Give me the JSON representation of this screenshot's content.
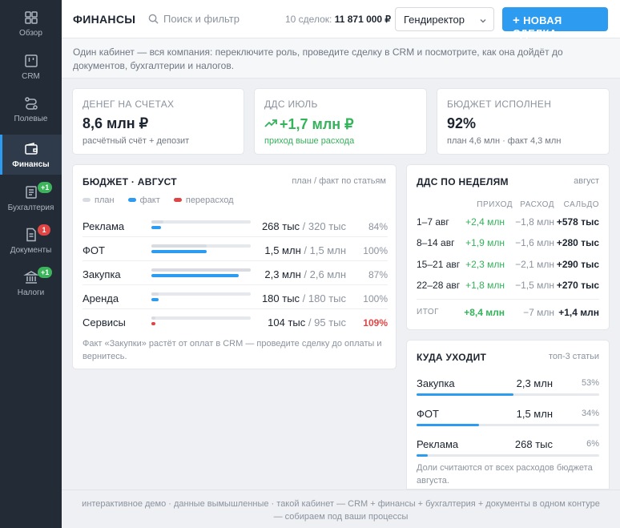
{
  "sidebar": {
    "items": [
      {
        "label": "Обзор",
        "icon": "grid-icon"
      },
      {
        "label": "CRM",
        "icon": "kanban-icon"
      },
      {
        "label": "Полевые",
        "icon": "route-icon"
      },
      {
        "label": "Финансы",
        "icon": "wallet-icon",
        "active": true
      },
      {
        "label": "Бухгалтерия",
        "icon": "ledger-icon",
        "badge": "+1"
      },
      {
        "label": "Документы",
        "icon": "document-icon",
        "badge": "1"
      },
      {
        "label": "Налоги",
        "icon": "bank-icon",
        "badge": "+1"
      }
    ]
  },
  "header": {
    "title": "ФИНАНСЫ",
    "search_placeholder": "Поиск и фильтр",
    "deals_label": "10 сделок:",
    "deals_total": "11 871 000 ₽",
    "role": "Гендиректор",
    "new_deal": "НОВАЯ СДЕЛКА"
  },
  "intro": "Один кабинет — вся компания: переключите роль, проведите сделку в CRM и посмотрите, как она дойдёт до документов, бухгалтерии и налогов.",
  "kpis": [
    {
      "label": "ДЕНЕГ НА СЧЕТАХ",
      "value": "8,6 млн ₽",
      "sub": "расчётный счёт + депозит"
    },
    {
      "label": "ДДС ИЮЛЬ",
      "value": "+1,7 млн ₽",
      "sub": "приход выше расхода"
    },
    {
      "label": "БЮДЖЕТ ИСПОЛНЕН",
      "value": "92%",
      "sub": "план 4,6 млн · факт 4,3 млн"
    }
  ],
  "budget": {
    "title": "БЮДЖЕТ · АВГУСТ",
    "note": "план / факт по статьям",
    "legend": {
      "plan": "план",
      "fact": "факт",
      "over": "перерасход"
    },
    "colors": {
      "plan": "#d8dce2",
      "fact": "#2d9cf0",
      "over": "#e04545"
    },
    "rows": [
      {
        "name": "Реклама",
        "fact": "268 тыс",
        "plan": "/ 320 тыс",
        "pct": "84%",
        "plan_fill": 0.12,
        "fact_fill": 0.1,
        "over": false
      },
      {
        "name": "ФОТ",
        "fact": "1,5 млн",
        "plan": "/ 1,5 млн",
        "pct": "100%",
        "plan_fill": 0.56,
        "fact_fill": 0.56,
        "over": false
      },
      {
        "name": "Закупка",
        "fact": "2,3 млн",
        "plan": "/ 2,6 млн",
        "pct": "87%",
        "plan_fill": 1.0,
        "fact_fill": 0.88,
        "over": false
      },
      {
        "name": "Аренда",
        "fact": "180 тыс",
        "plan": "/ 180 тыс",
        "pct": "100%",
        "plan_fill": 0.07,
        "fact_fill": 0.07,
        "over": false
      },
      {
        "name": "Сервисы",
        "fact": "104 тыс",
        "plan": "/ 95 тыс",
        "pct": "109%",
        "plan_fill": 0.04,
        "fact_fill": 0.04,
        "over": true
      }
    ],
    "footnote": "Факт «Закупки» растёт от оплат в CRM — проведите сделку до оплаты и вернитесь."
  },
  "dds": {
    "title": "ДДС ПО НЕДЕЛЯМ",
    "note": "август",
    "columns": {
      "income": "ПРИХОД",
      "expense": "РАСХОД",
      "balance": "САЛЬДО"
    },
    "rows": [
      {
        "week": "1–7 авг",
        "income": "+2,4 млн",
        "expense": "−1,8 млн",
        "balance": "+578 тыс"
      },
      {
        "week": "8–14 авг",
        "income": "+1,9 млн",
        "expense": "−1,6 млн",
        "balance": "+280 тыс"
      },
      {
        "week": "15–21 авг",
        "income": "+2,3 млн",
        "expense": "−2,1 млн",
        "balance": "+290 тыс"
      },
      {
        "week": "22–28 авг",
        "income": "+1,8 млн",
        "expense": "−1,5 млн",
        "balance": "+270 тыс"
      }
    ],
    "total": {
      "label": "ИТОГ",
      "income": "+8,4 млн",
      "expense": "−7 млн",
      "balance": "+1,4 млн"
    }
  },
  "where": {
    "title": "КУДА УХОДИТ",
    "note": "топ-3 статьи",
    "rows": [
      {
        "name": "Закупка",
        "amount": "2,3 млн",
        "pct": "53%",
        "share": 0.53
      },
      {
        "name": "ФОТ",
        "amount": "1,5 млн",
        "pct": "34%",
        "share": 0.34
      },
      {
        "name": "Реклама",
        "amount": "268 тыс",
        "pct": "6%",
        "share": 0.06
      }
    ],
    "footnote": "Доли считаются от всех расходов бюджета августа."
  },
  "footer": "интерактивное демо · данные вымышленные · такой кабинет — CRM + финансы + бухгалтерия + документы в одном контуре — собираем под ваши процессы"
}
